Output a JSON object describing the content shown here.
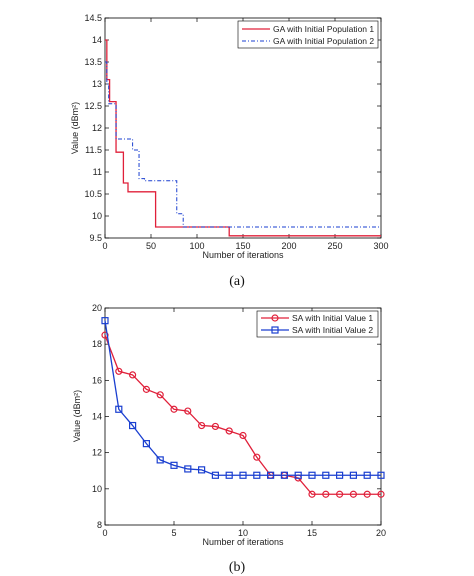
{
  "chart_data": [
    {
      "type": "line",
      "step": true,
      "caption": "(a)",
      "xlabel": "Number of iterations",
      "ylabel": "Value (dBm²)",
      "xlim": [
        0,
        300
      ],
      "ylim": [
        9.5,
        14.5
      ],
      "xticks": [
        "0",
        "50",
        "100",
        "150",
        "200",
        "250",
        "300"
      ],
      "yticks": [
        "9.5",
        "10",
        "10.5",
        "11",
        "11.5",
        "12",
        "12.5",
        "13",
        "13.5",
        "14",
        "14.5"
      ],
      "legend_position": "top-right",
      "series": [
        {
          "name": "GA with Initial Population 1",
          "color": "#e0203a",
          "style": "solid",
          "x": [
            0,
            2,
            5,
            10,
            12,
            20,
            25,
            32,
            55,
            135,
            300
          ],
          "y": [
            14.0,
            13.1,
            12.6,
            12.6,
            11.45,
            10.75,
            10.55,
            10.55,
            9.75,
            9.55,
            9.55
          ]
        },
        {
          "name": "GA with Initial Population 2",
          "color": "#1a3fd0",
          "style": "dashdot",
          "x": [
            0,
            2,
            4,
            12,
            30,
            37,
            43,
            78,
            85,
            95,
            300
          ],
          "y": [
            13.5,
            13.0,
            12.55,
            11.75,
            11.5,
            10.85,
            10.8,
            10.05,
            9.75,
            9.75,
            9.75
          ]
        }
      ]
    },
    {
      "type": "line",
      "caption": "(b)",
      "xlabel": "Number of iterations",
      "ylabel": "Value (dBm²)",
      "xlim": [
        0,
        20
      ],
      "ylim": [
        8,
        20
      ],
      "xticks": [
        "0",
        "5",
        "10",
        "15",
        "20"
      ],
      "yticks": [
        "8",
        "10",
        "12",
        "14",
        "16",
        "18",
        "20"
      ],
      "legend_position": "top-right",
      "series": [
        {
          "name": "SA with Initial Value 1",
          "color": "#e0203a",
          "marker": "circle",
          "x": [
            0,
            1,
            2,
            3,
            4,
            5,
            6,
            7,
            8,
            9,
            10,
            11,
            12,
            13,
            14,
            15,
            16,
            17,
            18,
            19,
            20
          ],
          "y": [
            18.5,
            16.5,
            16.3,
            15.5,
            15.2,
            14.4,
            14.3,
            13.5,
            13.45,
            13.2,
            12.95,
            11.75,
            10.75,
            10.75,
            10.6,
            9.7,
            9.7,
            9.7,
            9.7,
            9.7,
            9.7
          ]
        },
        {
          "name": "SA with Initial Value 2",
          "color": "#1a3fd0",
          "marker": "square",
          "x": [
            0,
            1,
            2,
            3,
            4,
            5,
            6,
            7,
            8,
            9,
            10,
            11,
            12,
            13,
            14,
            15,
            16,
            17,
            18,
            19,
            20
          ],
          "y": [
            19.3,
            14.4,
            13.5,
            12.5,
            11.6,
            11.3,
            11.1,
            11.05,
            10.75,
            10.75,
            10.75,
            10.75,
            10.75,
            10.75,
            10.75,
            10.75,
            10.75,
            10.75,
            10.75,
            10.75,
            10.75
          ]
        }
      ]
    }
  ]
}
